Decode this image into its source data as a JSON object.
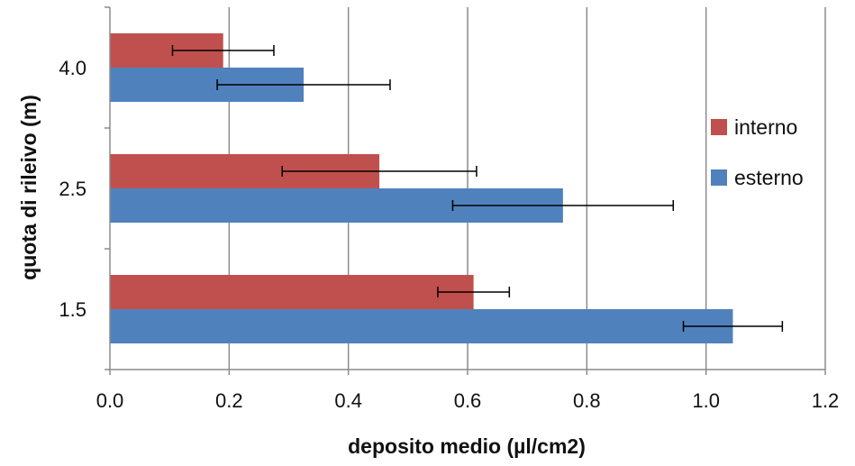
{
  "chart_data": {
    "type": "bar",
    "orientation": "horizontal",
    "categories": [
      "1.5",
      "2.5",
      "4.0"
    ],
    "series": [
      {
        "name": "esterno",
        "color": "#4F81BD",
        "values": [
          1.045,
          0.76,
          0.325
        ],
        "error": [
          0.083,
          0.185,
          0.145
        ]
      },
      {
        "name": "interno",
        "color": "#C0504D",
        "values": [
          0.61,
          0.452,
          0.19
        ],
        "error": [
          0.06,
          0.163,
          0.085
        ]
      }
    ],
    "xlabel": "deposito medio (µl/cm2)",
    "ylabel": "quota di rileivo (m)",
    "xlim": [
      0,
      1.2
    ],
    "xticks": [
      "0.0",
      "0.2",
      "0.4",
      "0.6",
      "0.8",
      "1.0",
      "1.2"
    ],
    "grid": "vertical",
    "legend_position": "right"
  }
}
